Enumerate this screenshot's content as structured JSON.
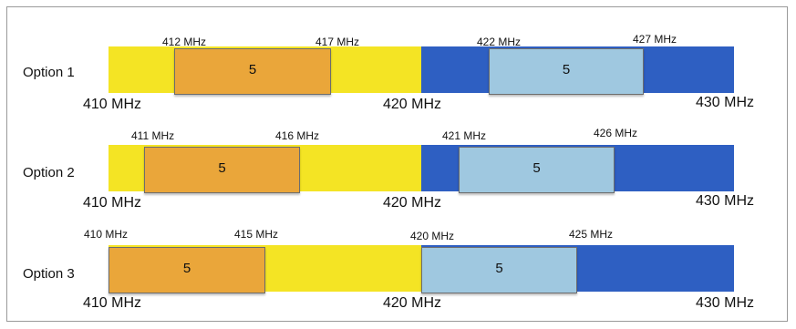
{
  "colors": {
    "lower_band": "#f4e424",
    "upper_band": "#2e5fc2",
    "lower_block": "#eaa63a",
    "upper_block": "#9fc8e0"
  },
  "options": [
    {
      "label": "Option 1",
      "lower_block_value": "5",
      "upper_block_value": "5",
      "lower_block_start": "412 MHz",
      "lower_block_end": "417 MHz",
      "upper_block_start": "422 MHz",
      "upper_block_end": "427 MHz",
      "scale_left": "410 MHz",
      "scale_mid": "420 MHz",
      "scale_right": "430 MHz"
    },
    {
      "label": "Option 2",
      "lower_block_value": "5",
      "upper_block_value": "5",
      "lower_block_start": "411 MHz",
      "lower_block_end": "416 MHz",
      "upper_block_start": "421 MHz",
      "upper_block_end": "426 MHz",
      "scale_left": "410 MHz",
      "scale_mid": "420 MHz",
      "scale_right": "430 MHz"
    },
    {
      "label": "Option 3",
      "lower_block_value": "5",
      "upper_block_value": "5",
      "lower_block_start": "410 MHz",
      "lower_block_end": "415 MHz",
      "upper_block_start": "420 MHz",
      "upper_block_end": "425 MHz",
      "scale_left": "410 MHz",
      "scale_mid": "420 MHz",
      "scale_right": "430 MHz"
    }
  ]
}
